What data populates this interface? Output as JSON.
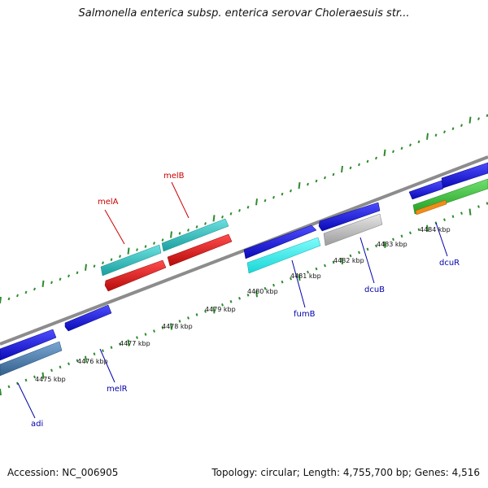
{
  "title": "Salmonella enterica subsp. enterica serovar Choleraesuis str...",
  "footer": {
    "accession": "Accession: NC_006905",
    "summary": "Topology: circular; Length: 4,755,700 bp; Genes: 4,516"
  },
  "scale_labels": [
    "4475 kbp",
    "4476 kbp",
    "4477 kbp",
    "4478 kbp",
    "4479 kbp",
    "4480 kbp",
    "4481 kbp",
    "4482 kbp",
    "4483 kbp",
    "4484 kbp"
  ],
  "gene_labels": {
    "melA": "melA",
    "melB": "melB",
    "fumB": "fumB",
    "dcuB": "dcuB",
    "dcuR": "dcuR",
    "melR": "melR",
    "adi": "adi"
  },
  "colors": {
    "backbone": "#8c8c8c",
    "ticks": "#2e8b2e",
    "blue": "#1a1ae6",
    "teal": "#2ec4c4",
    "red": "#e61a1a",
    "cyan": "#2ef0f0",
    "gray": "#bdbdbd",
    "steel": "#4f7faf",
    "green": "#3cc83c",
    "orange": "#f08c1a",
    "label_red": "#cc0000",
    "label_blue": "#0000aa"
  }
}
